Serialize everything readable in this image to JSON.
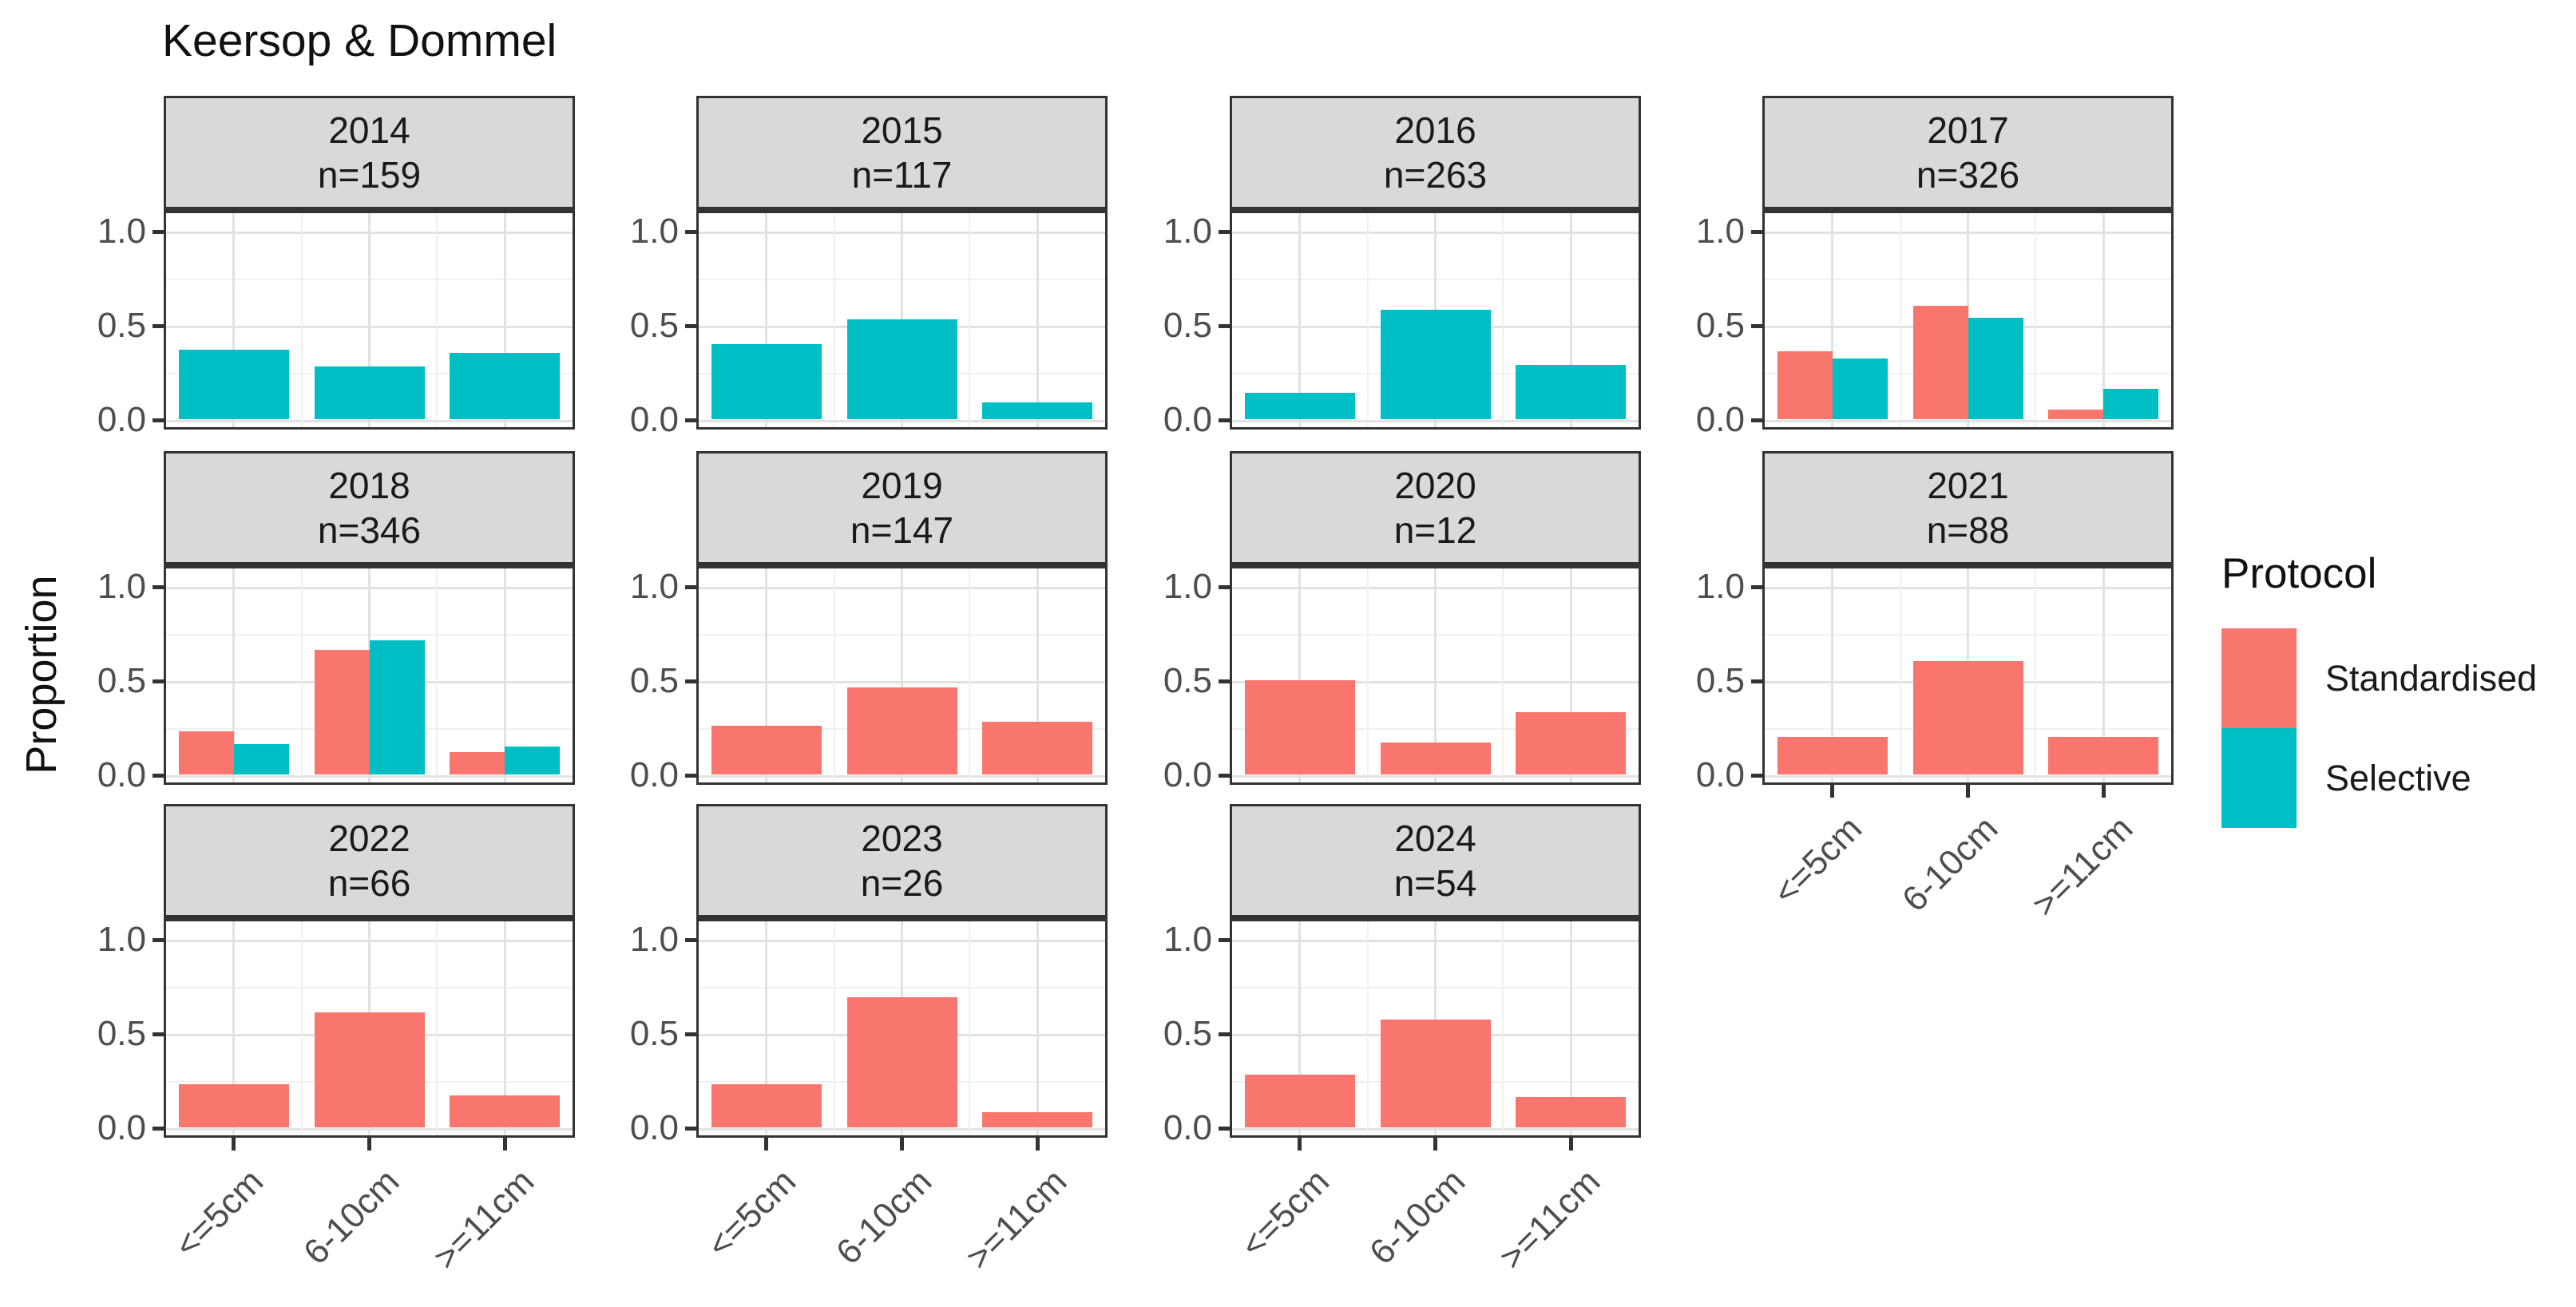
{
  "title": "Keersop & Dommel",
  "chart_data": {
    "type": "bar",
    "title": "Keersop & Dommel",
    "ylabel": "Proportion",
    "xlabel": "",
    "categories": [
      "<=5cm",
      "6-10cm",
      ">=11cm"
    ],
    "y_ticks": [
      "1.0",
      "0.5",
      "0.0"
    ],
    "ylim": [
      0,
      1.05
    ],
    "grid": "major+minor",
    "legend_position": "right",
    "legend": {
      "title": "Protocol",
      "items": [
        {
          "label": "Standardised",
          "color": "#F8766D"
        },
        {
          "label": "Selective",
          "color": "#00BFC4"
        }
      ]
    },
    "facets": [
      {
        "year": "2014",
        "n_label": "n=159",
        "series": [
          {
            "name": "Selective",
            "values": [
              0.37,
              0.28,
              0.35
            ]
          }
        ]
      },
      {
        "year": "2015",
        "n_label": "n=117",
        "series": [
          {
            "name": "Selective",
            "values": [
              0.4,
              0.53,
              0.09
            ]
          }
        ]
      },
      {
        "year": "2016",
        "n_label": "n=263",
        "series": [
          {
            "name": "Selective",
            "values": [
              0.14,
              0.58,
              0.29
            ]
          }
        ]
      },
      {
        "year": "2017",
        "n_label": "n=326",
        "series": [
          {
            "name": "Standardised",
            "values": [
              0.36,
              0.6,
              0.05
            ]
          },
          {
            "name": "Selective",
            "values": [
              0.32,
              0.54,
              0.16
            ]
          }
        ]
      },
      {
        "year": "2018",
        "n_label": "n=346",
        "series": [
          {
            "name": "Standardised",
            "values": [
              0.23,
              0.66,
              0.12
            ]
          },
          {
            "name": "Selective",
            "values": [
              0.16,
              0.71,
              0.15
            ]
          }
        ]
      },
      {
        "year": "2019",
        "n_label": "n=147",
        "series": [
          {
            "name": "Standardised",
            "values": [
              0.26,
              0.46,
              0.28
            ]
          }
        ]
      },
      {
        "year": "2020",
        "n_label": "n=12",
        "series": [
          {
            "name": "Standardised",
            "values": [
              0.5,
              0.17,
              0.33
            ]
          }
        ]
      },
      {
        "year": "2021",
        "n_label": "n=88",
        "series": [
          {
            "name": "Standardised",
            "values": [
              0.2,
              0.6,
              0.2
            ]
          }
        ]
      },
      {
        "year": "2022",
        "n_label": "n=66",
        "series": [
          {
            "name": "Standardised",
            "values": [
              0.23,
              0.61,
              0.17
            ]
          }
        ]
      },
      {
        "year": "2023",
        "n_label": "n=26",
        "series": [
          {
            "name": "Standardised",
            "values": [
              0.23,
              0.69,
              0.08
            ]
          }
        ]
      },
      {
        "year": "2024",
        "n_label": "n=54",
        "series": [
          {
            "name": "Standardised",
            "values": [
              0.28,
              0.57,
              0.16
            ]
          }
        ]
      }
    ]
  }
}
